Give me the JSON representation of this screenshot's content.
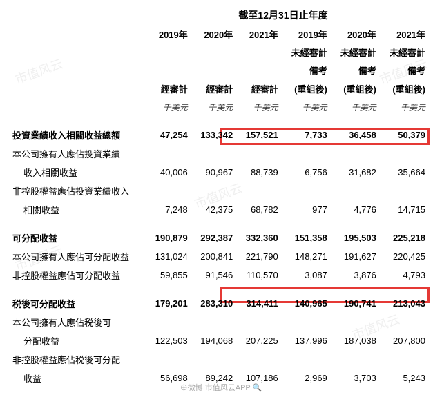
{
  "watermark_text": "市值风云",
  "footer_text": "⊕微博 市值风云APP 🔍",
  "super_header": "截至12月31日止年度",
  "columns": {
    "col1": {
      "year": "2019年",
      "sub1": "",
      "sub2": "",
      "audit": "經審計",
      "unit": "千美元"
    },
    "col2": {
      "year": "2020年",
      "sub1": "",
      "sub2": "",
      "audit": "經審計",
      "unit": "千美元"
    },
    "col3": {
      "year": "2021年",
      "sub1": "",
      "sub2": "",
      "audit": "經審計",
      "unit": "千美元"
    },
    "col4": {
      "year": "2019年",
      "sub1": "未經審計",
      "sub2": "備考",
      "audit": "(重組後)",
      "unit": "千美元"
    },
    "col5": {
      "year": "2020年",
      "sub1": "未經審計",
      "sub2": "備考",
      "audit": "(重組後)",
      "unit": "千美元"
    },
    "col6": {
      "year": "2021年",
      "sub1": "未經審計",
      "sub2": "備考",
      "audit": "(重組後)",
      "unit": "千美元"
    }
  },
  "rows": {
    "r1": {
      "label": "投資業績收入相關收益總額",
      "v": [
        "47,254",
        "133,342",
        "157,521",
        "7,733",
        "36,458",
        "50,379"
      ],
      "bold": true
    },
    "r2a": {
      "label": "本公司擁有人應佔投資業績"
    },
    "r2b": {
      "label": "收入相關收益",
      "v": [
        "40,006",
        "90,967",
        "88,739",
        "6,756",
        "31,682",
        "35,664"
      ]
    },
    "r3a": {
      "label": "非控股權益應佔投資業績收入"
    },
    "r3b": {
      "label": "相關收益",
      "v": [
        "7,248",
        "42,375",
        "68,782",
        "977",
        "4,776",
        "14,715"
      ]
    },
    "r4": {
      "label": "可分配收益",
      "v": [
        "190,879",
        "292,387",
        "332,360",
        "151,358",
        "195,503",
        "225,218"
      ],
      "bold": true
    },
    "r5": {
      "label": "本公司擁有人應佔可分配收益",
      "v": [
        "131,024",
        "200,841",
        "221,790",
        "148,271",
        "191,627",
        "220,425"
      ]
    },
    "r6": {
      "label": "非控股權益應佔可分配收益",
      "v": [
        "59,855",
        "91,546",
        "110,570",
        "3,087",
        "3,876",
        "4,793"
      ]
    },
    "r7": {
      "label": "税後可分配收益",
      "v": [
        "179,201",
        "283,310",
        "314,411",
        "140,965",
        "190,741",
        "213,043"
      ],
      "bold": true
    },
    "r8a": {
      "label": "本公司擁有人應佔税後可"
    },
    "r8b": {
      "label": "分配收益",
      "v": [
        "122,503",
        "194,068",
        "207,225",
        "137,996",
        "187,038",
        "207,800"
      ]
    },
    "r9a": {
      "label": "非控股權益應佔税後可分配"
    },
    "r9b": {
      "label": "收益",
      "v": [
        "56,698",
        "89,242",
        "107,186",
        "2,969",
        "3,703",
        "5,243"
      ]
    }
  }
}
